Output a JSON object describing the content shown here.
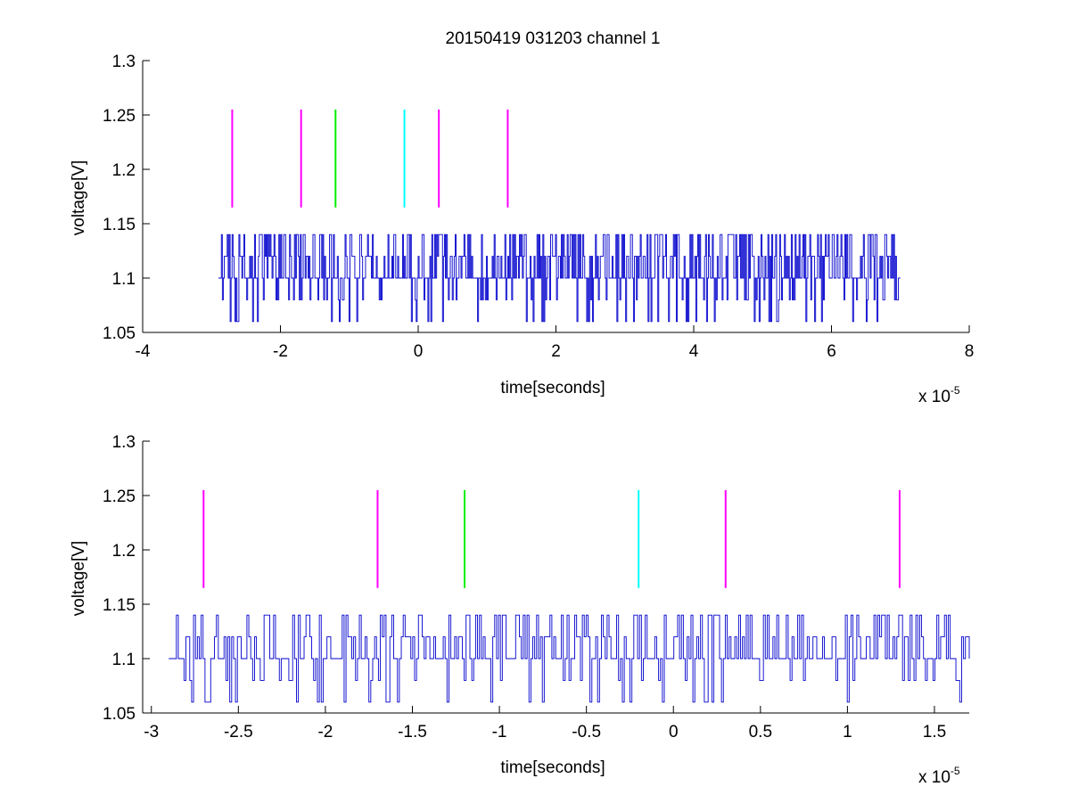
{
  "figure": {
    "title": "20150419 031203 channel 1"
  },
  "chart_data": [
    {
      "type": "line",
      "xlabel": "time[seconds]",
      "ylabel": "voltage[V]",
      "x_exponent_label": "x 10",
      "x_exponent_power": "-5",
      "xlim": [
        -4,
        8
      ],
      "ylim": [
        1.05,
        1.3
      ],
      "xticks": [
        -4,
        -2,
        0,
        2,
        4,
        6,
        8
      ],
      "xtick_labels": [
        "-4",
        "-2",
        "0",
        "2",
        "4",
        "6",
        "8"
      ],
      "yticks": [
        1.05,
        1.1,
        1.15,
        1.2,
        1.25,
        1.3
      ],
      "ytick_labels": [
        "1.05",
        "1.1",
        "1.15",
        "1.2",
        "1.25",
        "1.3"
      ],
      "grid": false,
      "signal": {
        "color": "#0000cc",
        "x_range": [
          -2.9,
          7.0
        ],
        "baseline": 1.1,
        "levels": [
          1.06,
          1.08,
          1.1,
          1.12,
          1.14
        ],
        "point_count": 700
      },
      "markers": [
        {
          "x": -2.7,
          "y": [
            1.165,
            1.255
          ],
          "color": "#ff00ff"
        },
        {
          "x": -1.7,
          "y": [
            1.165,
            1.255
          ],
          "color": "#ff00ff"
        },
        {
          "x": -1.2,
          "y": [
            1.165,
            1.255
          ],
          "color": "#00ee00"
        },
        {
          "x": -0.2,
          "y": [
            1.165,
            1.255
          ],
          "color": "#00ffff"
        },
        {
          "x": 0.3,
          "y": [
            1.165,
            1.255
          ],
          "color": "#ff00ff"
        },
        {
          "x": 1.3,
          "y": [
            1.165,
            1.255
          ],
          "color": "#ff00ff"
        }
      ]
    },
    {
      "type": "line",
      "xlabel": "time[seconds]",
      "ylabel": "voltage[V]",
      "x_exponent_label": "x 10",
      "x_exponent_power": "-5",
      "xlim": [
        -3.05,
        1.7
      ],
      "ylim": [
        1.05,
        1.3
      ],
      "xticks": [
        -3,
        -2.5,
        -2,
        -1.5,
        -1,
        -0.5,
        0,
        0.5,
        1,
        1.5
      ],
      "xtick_labels": [
        "-3",
        "-2.5",
        "-2",
        "-1.5",
        "-1",
        "-0.5",
        "0",
        "0.5",
        "1",
        "1.5"
      ],
      "yticks": [
        1.05,
        1.1,
        1.15,
        1.2,
        1.25,
        1.3
      ],
      "ytick_labels": [
        "1.05",
        "1.1",
        "1.15",
        "1.2",
        "1.25",
        "1.3"
      ],
      "grid": false,
      "signal": {
        "color": "#0000cc",
        "x_range": [
          -2.9,
          1.7
        ],
        "baseline": 1.1,
        "levels": [
          1.06,
          1.08,
          1.1,
          1.12,
          1.14
        ],
        "point_count": 420
      },
      "markers": [
        {
          "x": -2.7,
          "y": [
            1.165,
            1.255
          ],
          "color": "#ff00ff"
        },
        {
          "x": -1.7,
          "y": [
            1.165,
            1.255
          ],
          "color": "#ff00ff"
        },
        {
          "x": -1.2,
          "y": [
            1.165,
            1.255
          ],
          "color": "#00ee00"
        },
        {
          "x": -0.2,
          "y": [
            1.165,
            1.255
          ],
          "color": "#00ffff"
        },
        {
          "x": 0.3,
          "y": [
            1.165,
            1.255
          ],
          "color": "#ff00ff"
        },
        {
          "x": 1.3,
          "y": [
            1.165,
            1.255
          ],
          "color": "#ff00ff"
        }
      ]
    }
  ]
}
